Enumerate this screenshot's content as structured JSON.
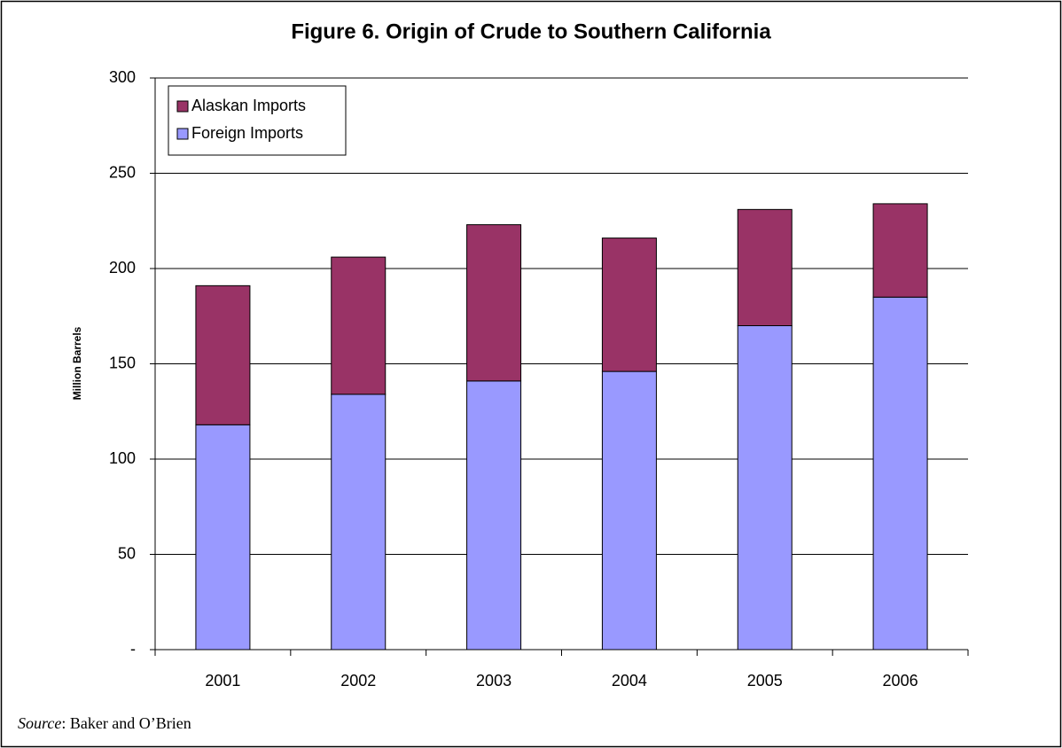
{
  "chart_data": {
    "type": "stacked_bar",
    "title": "Figure 6. Origin of Crude to Southern California",
    "y_label": "Million Barrels",
    "categories": [
      "2001",
      "2002",
      "2003",
      "2004",
      "2005",
      "2006"
    ],
    "series": [
      {
        "name": "Foreign Imports",
        "color": "#9999ff",
        "values": [
          118,
          134,
          141,
          146,
          170,
          185
        ]
      },
      {
        "name": "Alaskan Imports",
        "color": "#993366",
        "values": [
          73,
          72,
          82,
          70,
          61,
          49
        ]
      }
    ],
    "ylim": [
      0,
      300
    ],
    "yticks": [
      {
        "value": 0,
        "label": "-"
      },
      50,
      100,
      150,
      200,
      250,
      300
    ],
    "grid": true,
    "legend": "top-left",
    "source_label": "Source",
    "source_text": ": Baker and O’Brien"
  }
}
